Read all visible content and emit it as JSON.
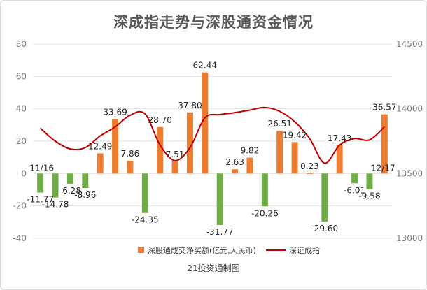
{
  "chart_data": {
    "type": "bar",
    "title": "深成指走势与深股通资金情况",
    "footer": "21投资通制图",
    "series": [
      {
        "name": "深股通成交净买额(亿元,人民币)",
        "type": "bar",
        "axis": "left",
        "values": [
          -11.77,
          -14.78,
          -6.28,
          -8.96,
          12.49,
          33.69,
          7.86,
          -24.35,
          28.7,
          7.51,
          37.8,
          62.44,
          -31.77,
          2.63,
          9.82,
          -20.26,
          26.51,
          19.42,
          0.23,
          -29.6,
          17.43,
          -6.01,
          -9.58,
          36.57
        ],
        "labels": [
          "-11.77",
          "-14.78",
          "-6.28",
          "-8.96",
          "12.49",
          "33.69",
          "7.86",
          "-24.35",
          "28.70",
          "7.51",
          "37.80",
          "62.44",
          "-31.77",
          "2.63",
          "9.82",
          "-20.26",
          "26.51",
          "19.42",
          "0.23",
          "-29.60",
          "17.43",
          "-6.01",
          "-9.58",
          "36.57"
        ]
      },
      {
        "name": "深证成指",
        "type": "line",
        "axis": "right",
        "values": [
          13850,
          13750,
          13690,
          13700,
          13790,
          13860,
          13950,
          13960,
          13720,
          13600,
          13700,
          13930,
          13955,
          13970,
          13990,
          14010,
          13980,
          13900,
          13770,
          13580,
          13720,
          13770,
          13760,
          13860
        ]
      }
    ],
    "annotations": [
      "11/16",
      "12/17"
    ],
    "ylim_left": [
      -40,
      80
    ],
    "yticks_left": [
      "80",
      "60",
      "40",
      "20",
      "0",
      "-20",
      "-40"
    ],
    "ylim_right": [
      13000,
      14500
    ],
    "yticks_right": [
      "14500",
      "14000",
      "13500",
      "13000"
    ],
    "colors": {
      "positive": "#ed7d31",
      "negative": "#70ad47",
      "line": "#c00000",
      "grid": "#e3e3e3"
    },
    "grid": true,
    "legend_position": "bottom"
  }
}
